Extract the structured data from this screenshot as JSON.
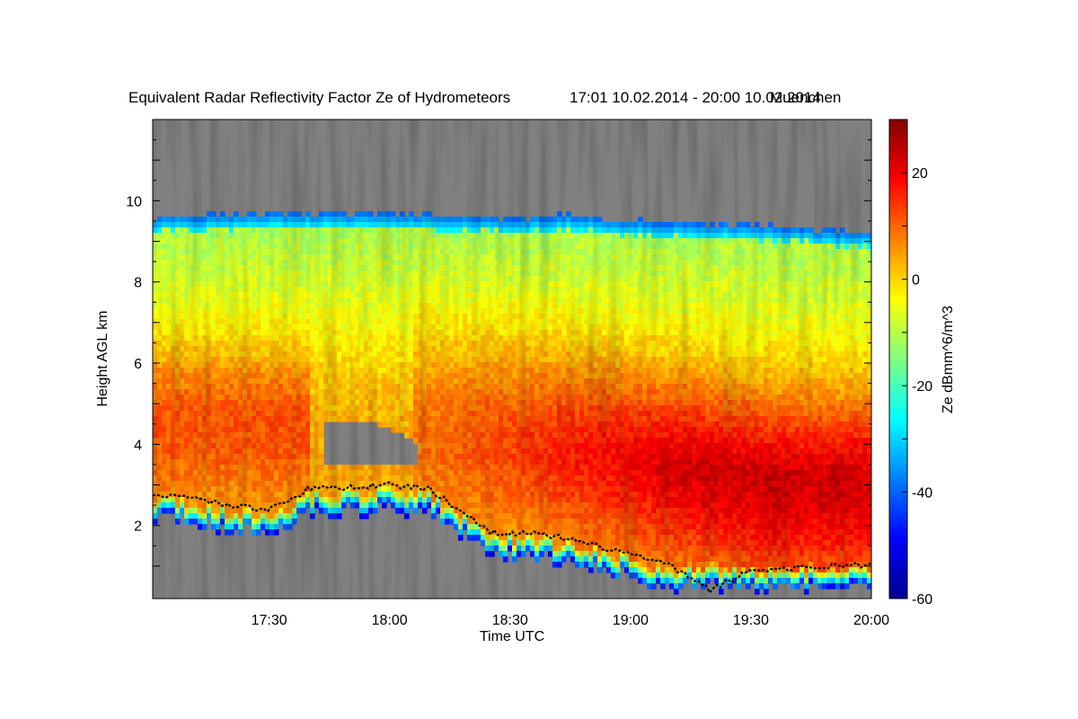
{
  "chart_data": {
    "type": "heatmap",
    "title": "Equivalent Radar Reflectivity Factor Ze of Hydrometeors",
    "period": "17:01 10.02.2014 - 20:00 10.02.2014",
    "location": "Muenchen",
    "xlabel": "Time UTC",
    "ylabel": "Height AGL km",
    "colorbar_label": "Ze dBmm^6/m^3",
    "x_start": "17:01",
    "x_end": "20:00",
    "x_ticks": [
      "17:30",
      "18:00",
      "18:30",
      "19:00",
      "19:30",
      "20:00"
    ],
    "y_ticks": [
      2,
      4,
      6,
      8,
      10
    ],
    "ylim": [
      0.2,
      12
    ],
    "colorbar_ticks": [
      20,
      0,
      -20,
      -40,
      -60
    ],
    "zlim": [
      -60,
      30
    ],
    "no_data_color": "#808080",
    "colormap": "jet",
    "echo_top_km": [
      [
        "17:01",
        9.6
      ],
      [
        "17:30",
        9.7
      ],
      [
        "18:00",
        9.7
      ],
      [
        "18:30",
        9.55
      ],
      [
        "18:45",
        9.65
      ],
      [
        "19:00",
        9.5
      ],
      [
        "19:30",
        9.4
      ],
      [
        "20:00",
        9.2
      ]
    ],
    "cloud_base_km": [
      [
        "17:01",
        2.8
      ],
      [
        "17:10",
        2.7
      ],
      [
        "17:20",
        2.5
      ],
      [
        "17:30",
        2.4
      ],
      [
        "17:40",
        2.9
      ],
      [
        "18:00",
        3.0
      ],
      [
        "18:10",
        2.9
      ],
      [
        "18:20",
        2.2
      ],
      [
        "18:25",
        1.85
      ],
      [
        "18:40",
        1.75
      ],
      [
        "19:00",
        1.3
      ],
      [
        "19:10",
        1.0
      ],
      [
        "19:20",
        0.4
      ],
      [
        "19:30",
        0.9
      ],
      [
        "20:00",
        1.05
      ]
    ],
    "approx_reflectivity_dbz": [
      {
        "region": "upper layer 8-9.5 km",
        "ze": -10
      },
      {
        "region": "17:10-17:30 at 4-5 km",
        "ze": 8
      },
      {
        "region": "18:00-18:30 at 4-5 km",
        "ze": 8
      },
      {
        "region": "19:00-20:00 at 2.5-4 km",
        "ze": 16
      },
      {
        "region": "echo edges",
        "ze": -45
      }
    ]
  }
}
